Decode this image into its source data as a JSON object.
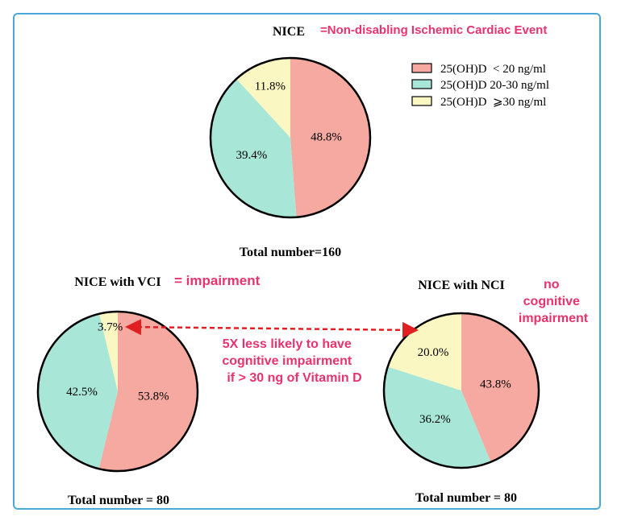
{
  "colors": {
    "low": "#f6a9a0",
    "mid": "#a8e6d8",
    "high": "#fbf7c2",
    "accent": "#e8336d",
    "arrow": "#e02020",
    "frame": "#4aa8d8"
  },
  "annotations": {
    "nice_definition": "=Non-disabling Ischemic Cardiac Event",
    "vci_definition": "= impairment",
    "nci_definition_lines": [
      "no",
      "cognitive",
      "impairment"
    ],
    "arrow_note_lines": [
      "5X less likely to have",
      "cognitive impairment",
      "if > 30 ng of Vitamin D"
    ]
  },
  "legend": {
    "entries": [
      "25(OH)D  < 20 ng/ml",
      "25(OH)D 20-30 ng/ml",
      "25(OH)D  ⩾30 ng/ml"
    ]
  },
  "chart_data": [
    {
      "type": "pie",
      "title": "NICE",
      "categories": [
        "25(OH)D < 20 ng/ml",
        "25(OH)D 20-30 ng/ml",
        "25(OH)D ⩾30 ng/ml"
      ],
      "values": [
        48.8,
        39.4,
        11.8
      ],
      "labels": [
        "48.8%",
        "39.4%",
        "11.8%"
      ],
      "footer": "Total number=160"
    },
    {
      "type": "pie",
      "title": "NICE with VCI",
      "categories": [
        "25(OH)D < 20 ng/ml",
        "25(OH)D 20-30 ng/ml",
        "25(OH)D ⩾30 ng/ml"
      ],
      "values": [
        53.8,
        42.5,
        3.7
      ],
      "labels": [
        "53.8%",
        "42.5%",
        "3.7%"
      ],
      "footer": "Total number = 80"
    },
    {
      "type": "pie",
      "title": "NICE with NCI",
      "categories": [
        "25(OH)D < 20 ng/ml",
        "25(OH)D 20-30 ng/ml",
        "25(OH)D ⩾30 ng/ml"
      ],
      "values": [
        43.8,
        36.2,
        20.0
      ],
      "labels": [
        "43.8%",
        "36.2%",
        "20.0%"
      ],
      "footer": "Total number = 80"
    }
  ]
}
